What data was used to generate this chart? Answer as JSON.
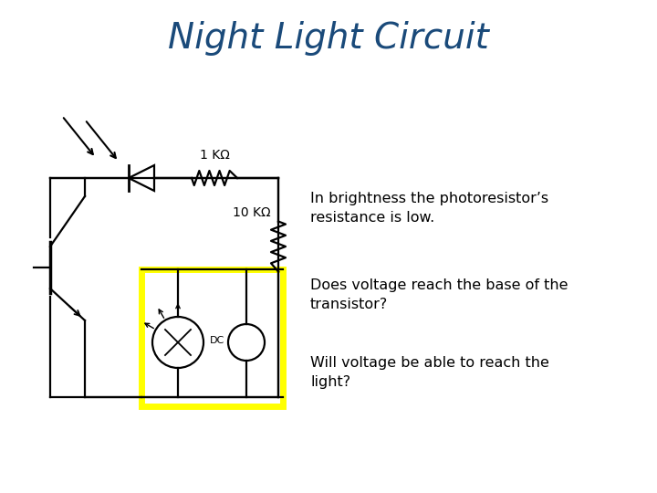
{
  "title": "Night Light Circuit",
  "title_color": "#1a4a7a",
  "title_fontsize": 28,
  "background_color": "#ffffff",
  "label_1kohm": "1 KΩ",
  "label_10kohm": "10 KΩ",
  "label_dc": "DC",
  "text1": "In brightness the photoresistor’s\nresistance is low.",
  "text2": "Does voltage reach the base of the\ntransistor?",
  "text3": "Will voltage be able to reach the\nlight?",
  "text_fontsize": 11.5,
  "circuit_color": "#000000",
  "yellow_color": "#ffff00",
  "lw": 1.6
}
